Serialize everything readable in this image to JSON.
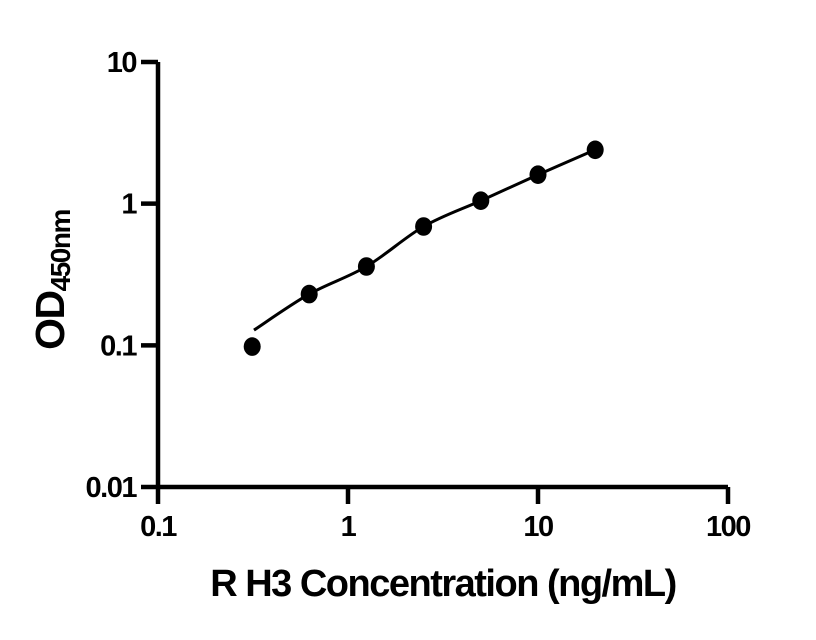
{
  "chart_data": {
    "type": "scatter",
    "title": "",
    "xlabel": "R H3 Concentration (ng/mL)",
    "ylabel_main": "OD",
    "ylabel_sub": "450nm",
    "x_scale": "log10",
    "y_scale": "log10",
    "xlim": [
      0.1,
      100
    ],
    "ylim": [
      0.01,
      10
    ],
    "x_ticks": [
      0.1,
      1,
      10,
      100
    ],
    "x_tick_labels": [
      "0.1",
      "1",
      "10",
      "100"
    ],
    "y_ticks": [
      10,
      1,
      0.1,
      0.01
    ],
    "y_tick_labels": [
      "10",
      "1",
      "0.1",
      "0.01"
    ],
    "grid": false,
    "legend": false,
    "colors": {
      "ink": "#000000",
      "background": "#ffffff"
    },
    "series": [
      {
        "name": "standard-curve-points",
        "marker": "filled-circle",
        "x": [
          0.313,
          0.625,
          1.25,
          2.5,
          5,
          10,
          20
        ],
        "y": [
          0.098,
          0.23,
          0.36,
          0.69,
          1.05,
          1.6,
          2.4
        ]
      }
    ],
    "fit_curve": {
      "x": [
        0.32,
        0.625,
        1.25,
        2.5,
        5,
        10,
        20
      ],
      "y": [
        0.128,
        0.23,
        0.36,
        0.69,
        1.05,
        1.6,
        2.4
      ]
    }
  }
}
